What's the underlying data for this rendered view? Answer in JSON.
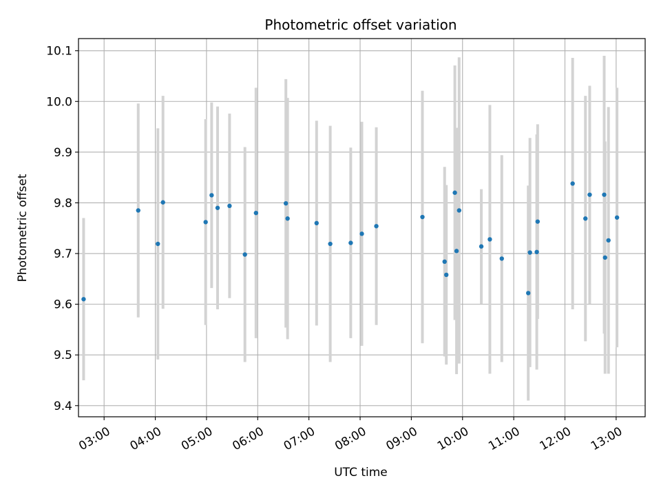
{
  "chart_data": {
    "type": "scatter",
    "title": "Photometric offset variation",
    "xlabel": "UTC time",
    "ylabel": "Photometric offset",
    "xlim": [
      "02:30",
      "13:34"
    ],
    "ylim": [
      9.378,
      10.124
    ],
    "grid": true,
    "legend": "none",
    "x_ticks": [
      "03:00",
      "04:00",
      "05:00",
      "06:00",
      "07:00",
      "08:00",
      "09:00",
      "10:00",
      "11:00",
      "12:00",
      "13:00"
    ],
    "y_ticks": [
      9.4,
      9.5,
      9.6,
      9.7,
      9.8,
      9.9,
      10.0,
      10.1
    ],
    "y_tick_labels": [
      "9.4",
      "9.5",
      "9.6",
      "9.7",
      "9.8",
      "9.9",
      "10.0",
      "10.1"
    ],
    "colors": {
      "point": "#1f77b4",
      "errorbar": "#d3d3d3",
      "grid": "#b0b0b0"
    },
    "series": [
      {
        "points": [
          {
            "x": "02:36",
            "y": 9.61,
            "err": 0.16
          },
          {
            "x": "03:40",
            "y": 9.785,
            "err": 0.211
          },
          {
            "x": "04:03",
            "y": 9.719,
            "err": 0.228
          },
          {
            "x": "04:09",
            "y": 9.801,
            "err": 0.21
          },
          {
            "x": "04:59",
            "y": 9.762,
            "err": 0.203
          },
          {
            "x": "05:06",
            "y": 9.815,
            "err": 0.183
          },
          {
            "x": "05:13",
            "y": 9.79,
            "err": 0.2
          },
          {
            "x": "05:27",
            "y": 9.794,
            "err": 0.182
          },
          {
            "x": "05:45",
            "y": 9.698,
            "err": 0.212
          },
          {
            "x": "05:58",
            "y": 9.78,
            "err": 0.247
          },
          {
            "x": "06:33",
            "y": 9.799,
            "err": 0.245
          },
          {
            "x": "06:35",
            "y": 9.769,
            "err": 0.238
          },
          {
            "x": "07:09",
            "y": 9.76,
            "err": 0.202
          },
          {
            "x": "07:25",
            "y": 9.719,
            "err": 0.233
          },
          {
            "x": "07:49",
            "y": 9.721,
            "err": 0.188
          },
          {
            "x": "08:02",
            "y": 9.739,
            "err": 0.221
          },
          {
            "x": "08:19",
            "y": 9.754,
            "err": 0.195
          },
          {
            "x": "09:13",
            "y": 9.772,
            "err": 0.249
          },
          {
            "x": "09:39",
            "y": 9.684,
            "err": 0.187
          },
          {
            "x": "09:41",
            "y": 9.658,
            "err": 0.177
          },
          {
            "x": "09:51",
            "y": 9.82,
            "err": 0.251
          },
          {
            "x": "09:53",
            "y": 9.705,
            "err": 0.243
          },
          {
            "x": "09:56",
            "y": 9.785,
            "err": 0.302
          },
          {
            "x": "10:22",
            "y": 9.714,
            "err": 0.113
          },
          {
            "x": "10:32",
            "y": 9.728,
            "err": 0.265
          },
          {
            "x": "10:46",
            "y": 9.69,
            "err": 0.204
          },
          {
            "x": "11:17",
            "y": 9.622,
            "err": 0.212
          },
          {
            "x": "11:19",
            "y": 9.702,
            "err": 0.226
          },
          {
            "x": "11:27",
            "y": 9.703,
            "err": 0.232
          },
          {
            "x": "11:28",
            "y": 9.763,
            "err": 0.192
          },
          {
            "x": "12:09",
            "y": 9.838,
            "err": 0.248
          },
          {
            "x": "12:24",
            "y": 9.769,
            "err": 0.242
          },
          {
            "x": "12:29",
            "y": 9.816,
            "err": 0.215
          },
          {
            "x": "12:46",
            "y": 9.816,
            "err": 0.274
          },
          {
            "x": "12:47",
            "y": 9.692,
            "err": 0.229
          },
          {
            "x": "12:51",
            "y": 9.726,
            "err": 0.263
          },
          {
            "x": "13:01",
            "y": 9.771,
            "err": 0.256
          }
        ]
      }
    ]
  }
}
